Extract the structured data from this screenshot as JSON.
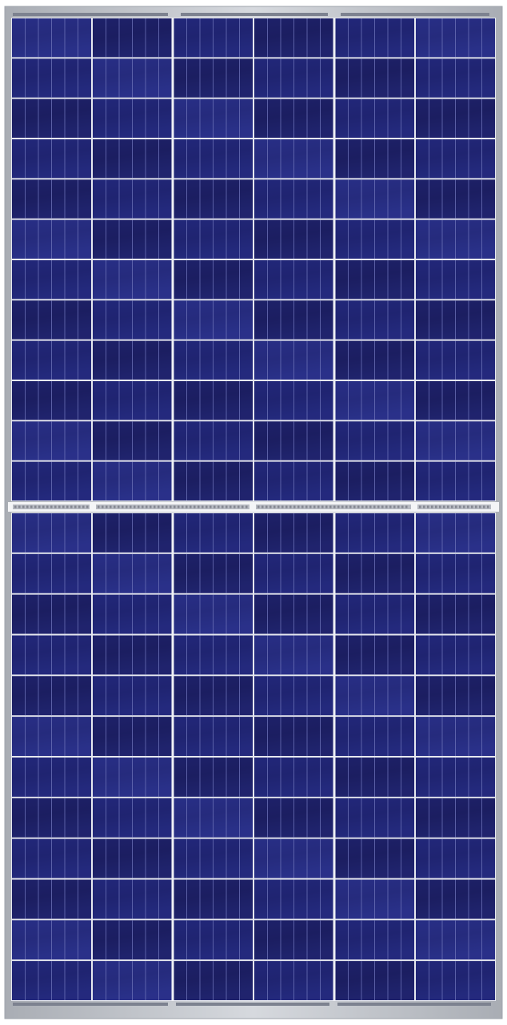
{
  "panel": {
    "subject": "solar-panel",
    "cell_layout": {
      "halves": 2,
      "cell_columns": 6,
      "cell_rows_per_half": 12,
      "fingers_per_cell": 6
    },
    "colors": {
      "background": "#ffffff",
      "frame": "#c9ccd1",
      "frame_edge": "#9ea3ab",
      "cell_dark": "#1b1d5c",
      "cell_mid": "#23287a",
      "cell_light": "#2d3490",
      "grid_line": "#e6e8ef",
      "finger_line": "#6d73b8",
      "busbar_strip": "#b7bac2",
      "ribbon_marks": "#6c707a"
    }
  }
}
